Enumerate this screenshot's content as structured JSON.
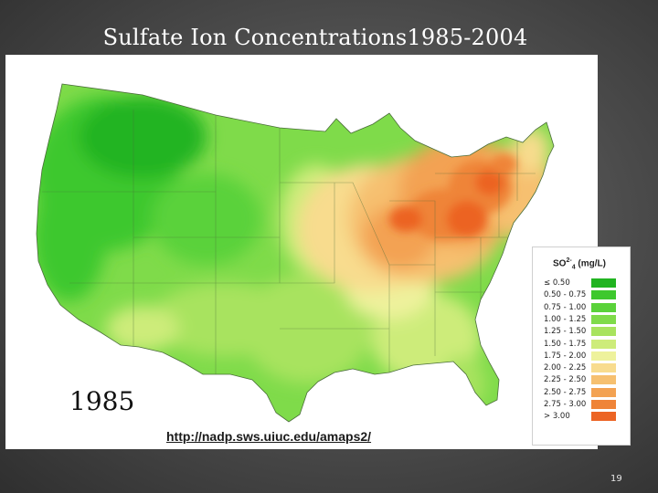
{
  "slide": {
    "title": "Sulfate Ion Concentrations1985-2004",
    "year_label": "1985",
    "source_link": "http://nadp.sws.uiuc.edu/amaps2/",
    "page_number": "19"
  },
  "legend": {
    "title_prefix": "SO",
    "title_sup": "2-",
    "title_sub": "4",
    "title_suffix": " (mg/L)",
    "bins": [
      {
        "label": "≤ 0.50",
        "color": "#21b421"
      },
      {
        "label": "0.50 - 0.75",
        "color": "#3ec82e"
      },
      {
        "label": "0.75 - 1.00",
        "color": "#5ad23a"
      },
      {
        "label": "1.00 - 1.25",
        "color": "#7fdb4a"
      },
      {
        "label": "1.25 - 1.50",
        "color": "#a8e35e"
      },
      {
        "label": "1.50 - 1.75",
        "color": "#cdec7a"
      },
      {
        "label": "1.75 - 2.00",
        "color": "#eef29c"
      },
      {
        "label": "2.00 - 2.25",
        "color": "#f8dc8e"
      },
      {
        "label": "2.25 - 2.50",
        "color": "#f6c070"
      },
      {
        "label": "2.50 - 2.75",
        "color": "#f3a252"
      },
      {
        "label": "2.75 - 3.00",
        "color": "#ef8438"
      },
      {
        "label": "> 3.00",
        "color": "#ec6424"
      }
    ]
  }
}
